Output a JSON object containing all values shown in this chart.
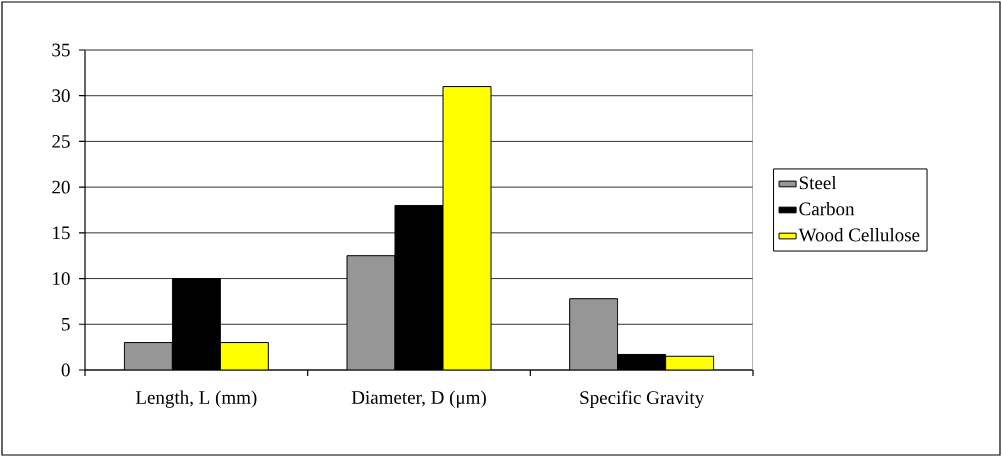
{
  "chart_data": {
    "type": "bar",
    "categories": [
      "Length, L (mm)",
      "Diameter, D (μm)",
      "Specific Gravity"
    ],
    "series": [
      {
        "name": "Steel",
        "color": "#969696",
        "values": [
          3,
          12.5,
          7.8
        ]
      },
      {
        "name": "Carbon",
        "color": "#000000",
        "values": [
          10,
          18,
          1.7
        ]
      },
      {
        "name": "Wood Cellulose",
        "color": "#ffff00",
        "values": [
          3,
          31,
          1.5
        ]
      }
    ],
    "ylim": [
      0,
      35
    ],
    "yticks": [
      0,
      5,
      10,
      15,
      20,
      25,
      30,
      35
    ],
    "grid": "y",
    "legend": "right"
  }
}
